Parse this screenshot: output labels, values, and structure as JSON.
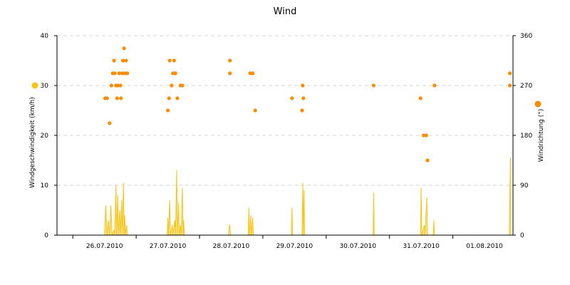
{
  "chart_data": {
    "type": "line",
    "title": "Wind",
    "x_labels": [
      "26.07.2010",
      "27.07.2010",
      "28.07.2010",
      "29.07.2010",
      "30.07.2010",
      "31.07.2010",
      "01.08.2010"
    ],
    "x_range_days": [
      -0.25,
      6.95
    ],
    "y_left": {
      "label": "Windgeschwindigkeit (km/h)",
      "ticks": [
        0,
        10,
        20,
        30,
        40
      ],
      "range": [
        0,
        40
      ]
    },
    "y_right": {
      "label": "Windrichtung (°)",
      "ticks": [
        0,
        90,
        180,
        270,
        360
      ],
      "range": [
        0,
        360
      ]
    },
    "grid": true,
    "legend": "none",
    "series": [
      {
        "type": "area",
        "color": "#f5c518",
        "values": [
          [
            0.5,
            0
          ],
          [
            0.52,
            6
          ],
          [
            0.54,
            0
          ],
          [
            0.56,
            3
          ],
          [
            0.58,
            0
          ],
          [
            0.6,
            6
          ],
          [
            0.62,
            0
          ],
          [
            0.65,
            1
          ],
          [
            0.66,
            0
          ],
          [
            0.68,
            10
          ],
          [
            0.69,
            0
          ],
          [
            0.71,
            8
          ],
          [
            0.72,
            0
          ],
          [
            0.74,
            5
          ],
          [
            0.75,
            0
          ],
          [
            0.77,
            7
          ],
          [
            0.78,
            0
          ],
          [
            0.8,
            10.5
          ],
          [
            0.81,
            0
          ],
          [
            0.82,
            4
          ],
          [
            0.83,
            0
          ],
          [
            0.85,
            2
          ],
          [
            0.86,
            0
          ],
          [
            1.49,
            0
          ],
          [
            1.5,
            3.5
          ],
          [
            1.51,
            0
          ],
          [
            1.53,
            7
          ],
          [
            1.54,
            0
          ],
          [
            1.57,
            2
          ],
          [
            1.58,
            0
          ],
          [
            1.61,
            3
          ],
          [
            1.62,
            0
          ],
          [
            1.64,
            13
          ],
          [
            1.65,
            0
          ],
          [
            1.67,
            6.5
          ],
          [
            1.68,
            0
          ],
          [
            1.7,
            2
          ],
          [
            1.71,
            0
          ],
          [
            1.73,
            9.5
          ],
          [
            1.74,
            0
          ],
          [
            1.75,
            3
          ],
          [
            1.76,
            0
          ],
          [
            2.46,
            0
          ],
          [
            2.47,
            2
          ],
          [
            2.48,
            2
          ],
          [
            2.49,
            0
          ],
          [
            2.77,
            0
          ],
          [
            2.78,
            5.5
          ],
          [
            2.79,
            0
          ],
          [
            2.81,
            4
          ],
          [
            2.82,
            0
          ],
          [
            2.84,
            3.5
          ],
          [
            2.85,
            0
          ],
          [
            3.45,
            0
          ],
          [
            3.46,
            5.5
          ],
          [
            3.47,
            0
          ],
          [
            3.62,
            0
          ],
          [
            3.63,
            10.5
          ],
          [
            3.64,
            0
          ],
          [
            3.65,
            9
          ],
          [
            3.66,
            0
          ],
          [
            4.74,
            0
          ],
          [
            4.75,
            8.5
          ],
          [
            4.76,
            0
          ],
          [
            5.49,
            0
          ],
          [
            5.5,
            9.5
          ],
          [
            5.51,
            0
          ],
          [
            5.55,
            2
          ],
          [
            5.56,
            0
          ],
          [
            5.59,
            7.5
          ],
          [
            5.6,
            0
          ],
          [
            5.69,
            0
          ],
          [
            5.7,
            3
          ],
          [
            5.71,
            0
          ],
          [
            6.89,
            0
          ],
          [
            6.91,
            15.5
          ]
        ]
      },
      {
        "type": "scatter",
        "color": "#ff8c00",
        "axis": "right",
        "values": [
          [
            0.51,
            247
          ],
          [
            0.54,
            247
          ],
          [
            0.58,
            202
          ],
          [
            0.61,
            270
          ],
          [
            0.63,
            292
          ],
          [
            0.65,
            315
          ],
          [
            0.66,
            292
          ],
          [
            0.68,
            270
          ],
          [
            0.7,
            247
          ],
          [
            0.71,
            270
          ],
          [
            0.73,
            292
          ],
          [
            0.75,
            270
          ],
          [
            0.76,
            247
          ],
          [
            0.78,
            292
          ],
          [
            0.79,
            315
          ],
          [
            0.81,
            337
          ],
          [
            0.82,
            292
          ],
          [
            0.84,
            315
          ],
          [
            0.86,
            292
          ],
          [
            1.5,
            225
          ],
          [
            1.52,
            247
          ],
          [
            1.53,
            315
          ],
          [
            1.56,
            270
          ],
          [
            1.58,
            292
          ],
          [
            1.6,
            315
          ],
          [
            1.62,
            292
          ],
          [
            1.65,
            247
          ],
          [
            1.7,
            270
          ],
          [
            1.73,
            270
          ],
          [
            2.48,
            315
          ],
          [
            2.48,
            292
          ],
          [
            2.8,
            292
          ],
          [
            2.84,
            292
          ],
          [
            2.88,
            225
          ],
          [
            3.46,
            247
          ],
          [
            3.62,
            225
          ],
          [
            3.63,
            270
          ],
          [
            3.64,
            247
          ],
          [
            4.75,
            270
          ],
          [
            5.49,
            247
          ],
          [
            5.54,
            180
          ],
          [
            5.58,
            180
          ],
          [
            5.6,
            135
          ],
          [
            5.71,
            270
          ],
          [
            6.9,
            270
          ],
          [
            6.9,
            292
          ]
        ]
      }
    ]
  }
}
